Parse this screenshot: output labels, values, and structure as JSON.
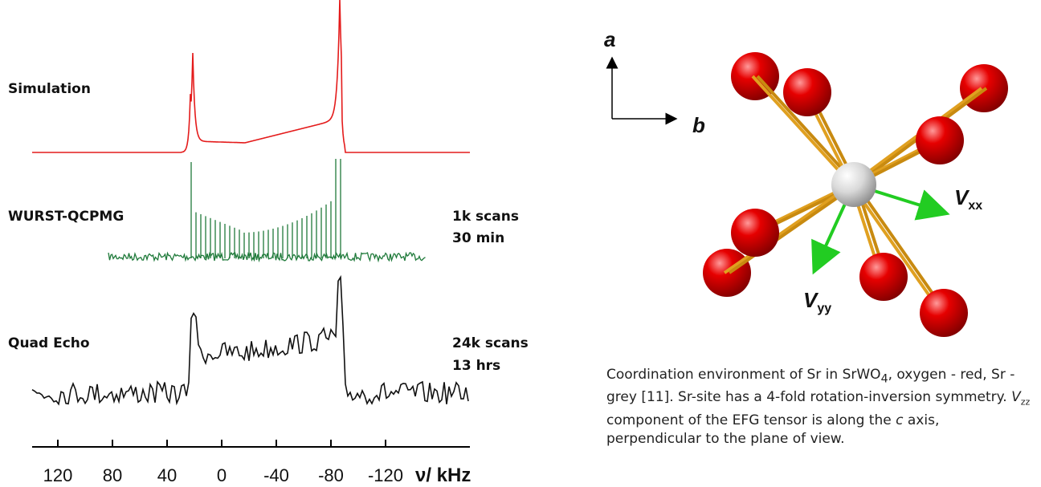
{
  "spectra": {
    "labels": [
      "Simulation",
      "WURST-QCPMG",
      "Quad Echo"
    ],
    "wurst_notes": [
      "1k scans",
      "30 min"
    ],
    "echo_notes": [
      "24k scans",
      "13 hrs"
    ],
    "axis": {
      "ticks": [
        120,
        80,
        40,
        0,
        -40,
        -80,
        -120
      ],
      "label": "ν/ kHz"
    }
  },
  "structure": {
    "axis_a": "a",
    "axis_b": "b",
    "vxx": [
      "V",
      "xx"
    ],
    "vyy": [
      "V",
      "yy"
    ]
  },
  "caption": [
    "Coordination environment of Sr in SrWO",
    "4",
    ", oxygen - red, Sr - grey [11]. Sr-site has a 4-fold rotation-inversion symmetry. ",
    "V",
    "zz",
    " component of the EFG tensor is along the ",
    "c",
    " axis, perpendicular to the plane of view."
  ]
}
